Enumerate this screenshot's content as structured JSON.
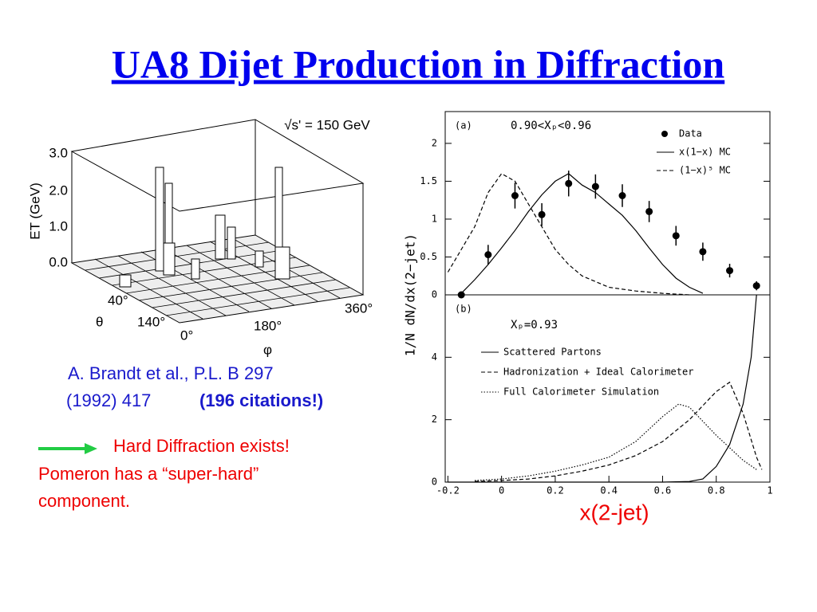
{
  "title": "UA8 Dijet Production in Diffraction",
  "lego_plot": {
    "energy_label": "√s' = 150 GeV",
    "z_axis_label": "ET (GeV)",
    "z_ticks": [
      "0.0",
      "1.0",
      "2.0",
      "3.0"
    ],
    "theta_label": "θ",
    "theta_ticks": [
      "40°",
      "140°"
    ],
    "phi_label": "φ",
    "phi_ticks": [
      "0°",
      "180°",
      "360°"
    ]
  },
  "citation": {
    "line1": "A. Brandt et al., P.L. B 297",
    "line2": "(1992) 417",
    "highlight": "(196 citations!)"
  },
  "conclusion": {
    "line1": "Hard Diffraction exists!",
    "line2": "Pomeron has a “super-hard”",
    "line3": "component."
  },
  "axes_labels": {
    "y_label": "1/N  dN/dx(2−jet)",
    "x_label": "x(2-jet)"
  },
  "chart_data": [
    {
      "type": "line",
      "panel_label": "(a)",
      "condition": "0.90<Xₚ<0.96",
      "legend": "upper right",
      "xlim": [
        -0.21,
        1.0
      ],
      "ylim": [
        0,
        2.42
      ],
      "yticks": [
        0,
        0.5,
        1,
        1.5,
        2
      ],
      "grid": false,
      "series": [
        {
          "name": "Data",
          "color": "#000000",
          "style": "marker",
          "x": [
            -0.15,
            -0.05,
            0.05,
            0.15,
            0.25,
            0.35,
            0.45,
            0.55,
            0.65,
            0.75,
            0.85,
            0.95
          ],
          "values": [
            0,
            0.53,
            1.31,
            1.06,
            1.47,
            1.43,
            1.31,
            1.1,
            0.78,
            0.57,
            0.32,
            0.12
          ],
          "errors": [
            0.02,
            0.13,
            0.17,
            0.15,
            0.17,
            0.16,
            0.15,
            0.14,
            0.13,
            0.12,
            0.09,
            0.06
          ]
        },
        {
          "name": "x(1−x) MC",
          "color": "#000000",
          "style": "solid",
          "x": [
            -0.15,
            -0.1,
            -0.05,
            0,
            0.05,
            0.1,
            0.15,
            0.2,
            0.25,
            0.3,
            0.35,
            0.4,
            0.45,
            0.5,
            0.55,
            0.6,
            0.65,
            0.7,
            0.75
          ],
          "values": [
            0.02,
            0.2,
            0.4,
            0.62,
            0.85,
            1.1,
            1.32,
            1.5,
            1.6,
            1.45,
            1.35,
            1.2,
            1.05,
            0.85,
            0.62,
            0.4,
            0.22,
            0.1,
            0.02
          ]
        },
        {
          "name": "(1−x)⁵ MC",
          "color": "#000000",
          "style": "dashed",
          "x": [
            -0.2,
            -0.15,
            -0.1,
            -0.05,
            0,
            0.05,
            0.1,
            0.15,
            0.2,
            0.25,
            0.3,
            0.4,
            0.5,
            0.6,
            0.7
          ],
          "values": [
            0.3,
            0.6,
            0.9,
            1.35,
            1.6,
            1.5,
            1.2,
            0.9,
            0.6,
            0.4,
            0.25,
            0.1,
            0.05,
            0.02,
            0
          ]
        }
      ]
    },
    {
      "type": "line",
      "panel_label": "(b)",
      "condition": "Xₚ=0.93",
      "legend": "upper left",
      "xlim": [
        -0.21,
        1.0
      ],
      "ylim": [
        0,
        6
      ],
      "yticks": [
        0,
        2,
        4
      ],
      "xticks": [
        -0.2,
        0,
        0.2,
        0.4,
        0.6,
        0.8,
        1
      ],
      "grid": false,
      "series": [
        {
          "name": "Scattered Partons",
          "color": "#000000",
          "style": "solid",
          "x": [
            -0.2,
            0,
            0.2,
            0.4,
            0.6,
            0.7,
            0.75,
            0.8,
            0.85,
            0.9,
            0.93,
            0.95
          ],
          "values": [
            0,
            0,
            0,
            0,
            0,
            0.02,
            0.1,
            0.5,
            1.2,
            2.5,
            4,
            6
          ]
        },
        {
          "name": "Hadronization + Ideal Calorimeter",
          "color": "#000000",
          "style": "dashed",
          "x": [
            -0.1,
            0,
            0.1,
            0.2,
            0.3,
            0.4,
            0.5,
            0.6,
            0.7,
            0.8,
            0.85,
            0.9,
            0.95,
            0.97
          ],
          "values": [
            0.02,
            0.05,
            0.1,
            0.2,
            0.35,
            0.55,
            0.85,
            1.3,
            2.0,
            2.9,
            3.2,
            2.2,
            0.8,
            0.4
          ]
        },
        {
          "name": "Full Calorimeter Simulation",
          "color": "#000000",
          "style": "dotted",
          "x": [
            -0.1,
            0,
            0.1,
            0.2,
            0.3,
            0.4,
            0.5,
            0.6,
            0.66,
            0.7,
            0.8,
            0.9,
            0.95
          ],
          "values": [
            0.05,
            0.1,
            0.2,
            0.35,
            0.55,
            0.8,
            1.3,
            2.1,
            2.5,
            2.4,
            1.5,
            0.7,
            0.4
          ]
        }
      ]
    }
  ]
}
